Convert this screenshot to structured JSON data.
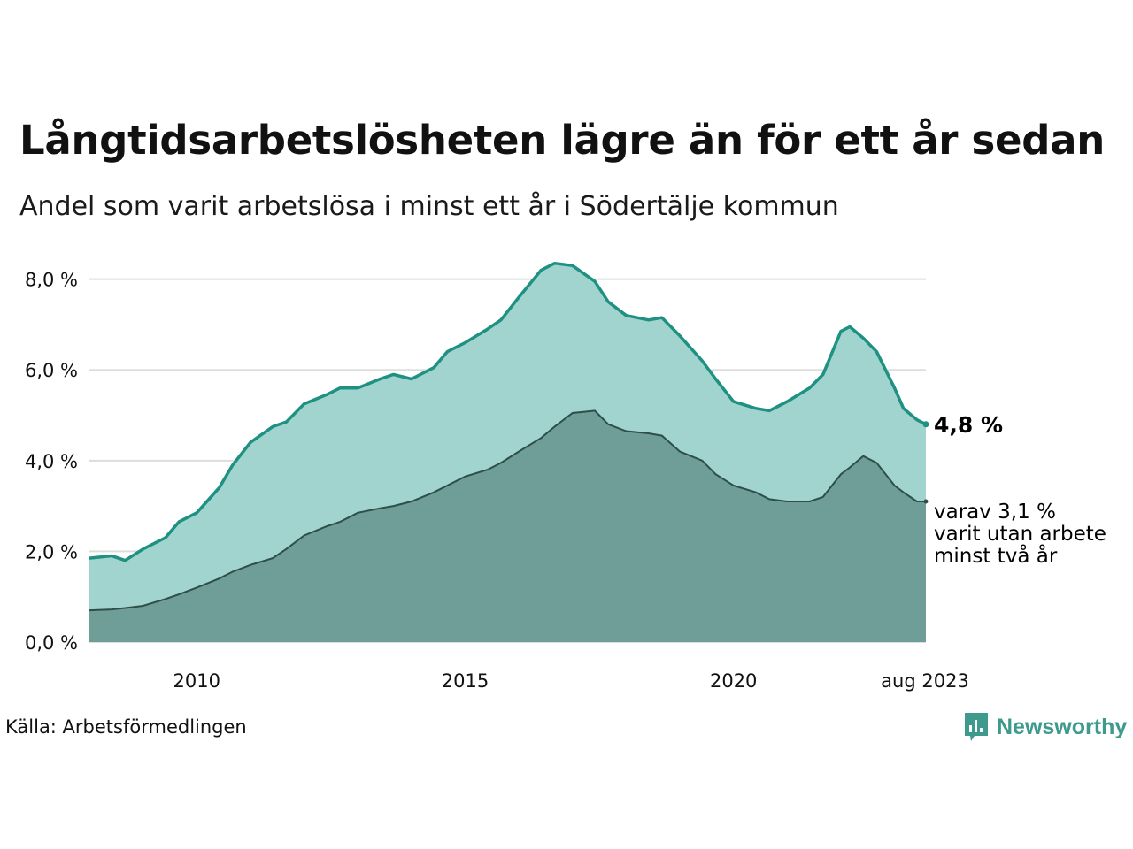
{
  "title": "Långtidsarbetslösheten lägre än för ett år sedan",
  "subtitle": "Andel som varit arbetslösa i minst ett år i Södertälje kommun",
  "source": "Källa: Arbetsförmedlingen",
  "brand": "Newsworthy",
  "colors": {
    "upper_fill": "#a2d4cf",
    "upper_line": "#1f9183",
    "lower_fill": "#6f9d97",
    "lower_line": "#2e4e4a",
    "grid": "#dddddd"
  },
  "chart_data": {
    "type": "area",
    "title": "Långtidsarbetslösheten lägre än för ett år sedan",
    "ylim": [
      0,
      8.5
    ],
    "yticks": [
      0,
      2,
      4,
      6,
      8
    ],
    "ytick_labels": [
      "0,0 %",
      "2,0 %",
      "4,0 %",
      "6,0 %",
      "8,0 %"
    ],
    "xlim": [
      "2008-01",
      "2023-08"
    ],
    "xtick_labels": [
      "2010",
      "2015",
      "2020",
      "aug 2023"
    ],
    "grid": true,
    "series": [
      {
        "label": "4,8 %",
        "points": [
          [
            "2008-01",
            1.85
          ],
          [
            "2008-06",
            1.9
          ],
          [
            "2008-09",
            1.8
          ],
          [
            "2009-01",
            2.05
          ],
          [
            "2009-06",
            2.3
          ],
          [
            "2009-09",
            2.65
          ],
          [
            "2010-01",
            2.85
          ],
          [
            "2010-06",
            3.4
          ],
          [
            "2010-09",
            3.9
          ],
          [
            "2011-01",
            4.4
          ],
          [
            "2011-06",
            4.75
          ],
          [
            "2011-09",
            4.85
          ],
          [
            "2012-01",
            5.25
          ],
          [
            "2012-06",
            5.45
          ],
          [
            "2012-09",
            5.6
          ],
          [
            "2013-01",
            5.6
          ],
          [
            "2013-06",
            5.8
          ],
          [
            "2013-09",
            5.9
          ],
          [
            "2014-01",
            5.8
          ],
          [
            "2014-06",
            6.05
          ],
          [
            "2014-09",
            6.4
          ],
          [
            "2015-01",
            6.6
          ],
          [
            "2015-06",
            6.9
          ],
          [
            "2015-09",
            7.1
          ],
          [
            "2016-01",
            7.6
          ],
          [
            "2016-06",
            8.2
          ],
          [
            "2016-09",
            8.35
          ],
          [
            "2017-01",
            8.3
          ],
          [
            "2017-06",
            7.95
          ],
          [
            "2017-09",
            7.5
          ],
          [
            "2018-01",
            7.2
          ],
          [
            "2018-06",
            7.1
          ],
          [
            "2018-09",
            7.15
          ],
          [
            "2019-01",
            6.75
          ],
          [
            "2019-06",
            6.2
          ],
          [
            "2019-09",
            5.8
          ],
          [
            "2020-01",
            5.3
          ],
          [
            "2020-06",
            5.15
          ],
          [
            "2020-09",
            5.1
          ],
          [
            "2021-01",
            5.3
          ],
          [
            "2021-06",
            5.6
          ],
          [
            "2021-09",
            5.9
          ],
          [
            "2022-01",
            6.85
          ],
          [
            "2022-03",
            6.95
          ],
          [
            "2022-06",
            6.7
          ],
          [
            "2022-09",
            6.4
          ],
          [
            "2023-01",
            5.6
          ],
          [
            "2023-03",
            5.15
          ],
          [
            "2023-06",
            4.9
          ],
          [
            "2023-08",
            4.8
          ]
        ]
      },
      {
        "label": "varav 3,1 %",
        "points": [
          [
            "2008-01",
            0.7
          ],
          [
            "2008-06",
            0.72
          ],
          [
            "2008-09",
            0.75
          ],
          [
            "2009-01",
            0.8
          ],
          [
            "2009-06",
            0.95
          ],
          [
            "2009-09",
            1.05
          ],
          [
            "2010-01",
            1.2
          ],
          [
            "2010-06",
            1.4
          ],
          [
            "2010-09",
            1.55
          ],
          [
            "2011-01",
            1.7
          ],
          [
            "2011-06",
            1.85
          ],
          [
            "2011-09",
            2.05
          ],
          [
            "2012-01",
            2.35
          ],
          [
            "2012-06",
            2.55
          ],
          [
            "2012-09",
            2.65
          ],
          [
            "2013-01",
            2.85
          ],
          [
            "2013-06",
            2.95
          ],
          [
            "2013-09",
            3.0
          ],
          [
            "2014-01",
            3.1
          ],
          [
            "2014-06",
            3.3
          ],
          [
            "2014-09",
            3.45
          ],
          [
            "2015-01",
            3.65
          ],
          [
            "2015-06",
            3.8
          ],
          [
            "2015-09",
            3.95
          ],
          [
            "2016-01",
            4.2
          ],
          [
            "2016-06",
            4.5
          ],
          [
            "2016-09",
            4.75
          ],
          [
            "2017-01",
            5.05
          ],
          [
            "2017-06",
            5.1
          ],
          [
            "2017-09",
            4.8
          ],
          [
            "2018-01",
            4.65
          ],
          [
            "2018-06",
            4.6
          ],
          [
            "2018-09",
            4.55
          ],
          [
            "2019-01",
            4.2
          ],
          [
            "2019-06",
            4.0
          ],
          [
            "2019-09",
            3.7
          ],
          [
            "2020-01",
            3.45
          ],
          [
            "2020-06",
            3.3
          ],
          [
            "2020-09",
            3.15
          ],
          [
            "2021-01",
            3.1
          ],
          [
            "2021-06",
            3.1
          ],
          [
            "2021-09",
            3.2
          ],
          [
            "2022-01",
            3.7
          ],
          [
            "2022-03",
            3.85
          ],
          [
            "2022-06",
            4.1
          ],
          [
            "2022-09",
            3.95
          ],
          [
            "2023-01",
            3.45
          ],
          [
            "2023-03",
            3.3
          ],
          [
            "2023-06",
            3.1
          ],
          [
            "2023-08",
            3.1
          ]
        ]
      }
    ],
    "annotations": {
      "upper_end": "4,8 %",
      "lower_end_lines": [
        "varav 3,1 %",
        "varit utan arbete",
        "minst två år"
      ]
    }
  }
}
